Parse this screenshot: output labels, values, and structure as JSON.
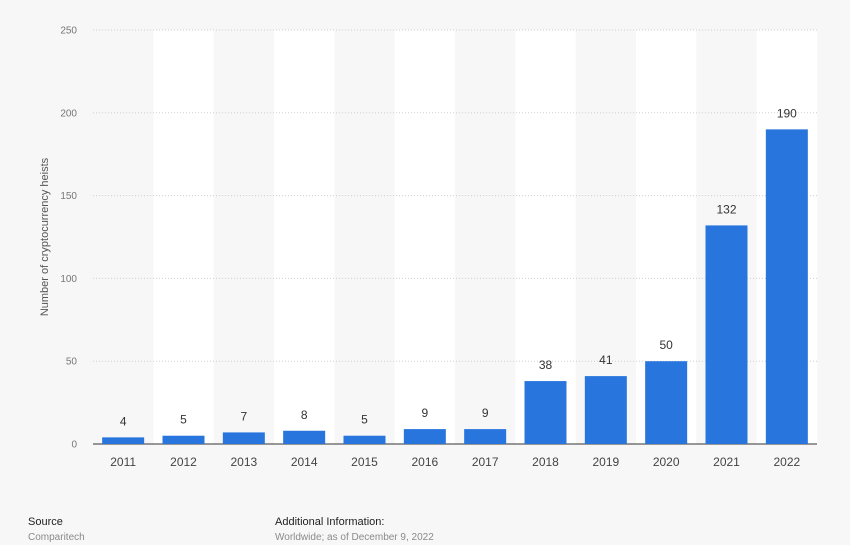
{
  "chart_data": {
    "type": "bar",
    "title": "",
    "xlabel": "",
    "ylabel": "Number of cryptocurrency heists",
    "ylim": [
      0,
      250
    ],
    "yticks": [
      0,
      50,
      100,
      150,
      200,
      250
    ],
    "grid": true,
    "categories": [
      "2011",
      "2012",
      "2013",
      "2014",
      "2015",
      "2016",
      "2017",
      "2018",
      "2019",
      "2020",
      "2021",
      "2022"
    ],
    "values": [
      4,
      5,
      7,
      8,
      5,
      9,
      9,
      38,
      41,
      50,
      132,
      190
    ],
    "bar_color": "#2876dd"
  },
  "footer": {
    "source_heading": "Source",
    "source_text": "Comparitech",
    "info_heading": "Additional Information:",
    "info_text": "Worldwide; as of December 9, 2022"
  },
  "colors": {
    "background": "#f7f7f7",
    "band": "#ffffff",
    "bar": "#2876dd",
    "grid": "#cfcfcf",
    "axis_text": "#555555"
  }
}
